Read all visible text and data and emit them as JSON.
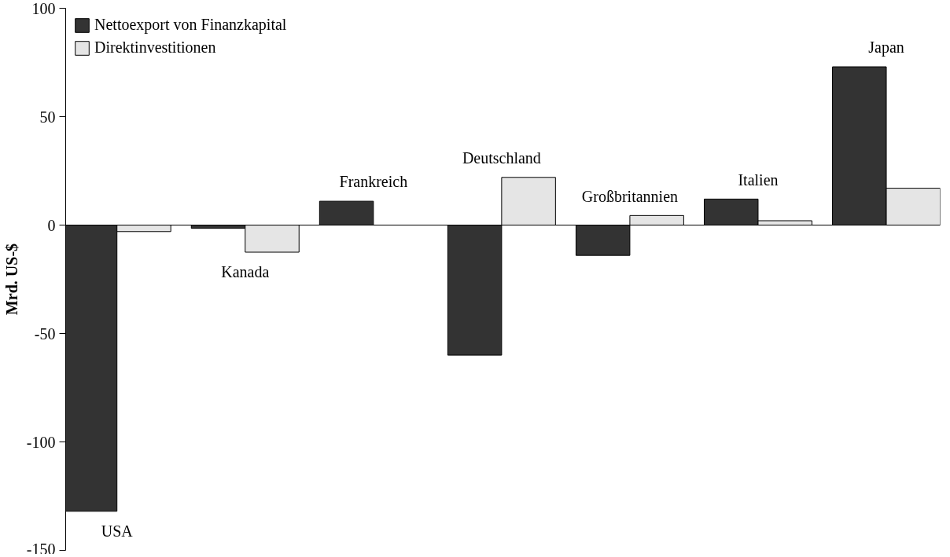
{
  "chart_data": {
    "type": "bar",
    "ylabel": "Mrd. US-$",
    "categories": [
      "USA",
      "Kanada",
      "Frankreich",
      "Deutschland",
      "Großbritannien",
      "Italien",
      "Japan"
    ],
    "series": [
      {
        "name": "Nettoexport von Finanzkapital",
        "color": "#333333",
        "values": [
          -132,
          -1.5,
          11,
          -60,
          -14,
          12,
          73
        ]
      },
      {
        "name": "Direktinvestitionen",
        "color": "#e5e5e5",
        "values": [
          -3,
          -12.5,
          null,
          22,
          4.4,
          2,
          17
        ]
      }
    ],
    "ylim": [
      -150,
      100
    ],
    "yticks": [
      -150,
      -100,
      -50,
      0,
      50,
      100
    ],
    "grid": false,
    "legend": "top left"
  }
}
